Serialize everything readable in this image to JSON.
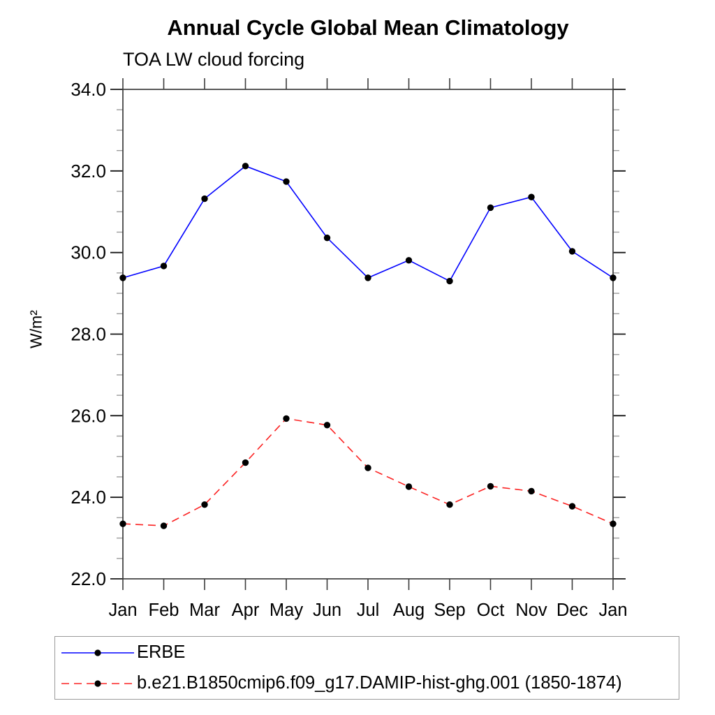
{
  "header": {
    "title": "Annual Cycle Global Mean Climatology",
    "subtitle": "TOA LW cloud forcing"
  },
  "chart_data": {
    "type": "line",
    "title": "Annual Cycle Global Mean Climatology",
    "subtitle": "TOA LW cloud forcing",
    "ylabel": "W/m²",
    "xlabel": "",
    "categories": [
      "Jan",
      "Feb",
      "Mar",
      "Apr",
      "May",
      "Jun",
      "Jul",
      "Aug",
      "Sep",
      "Oct",
      "Nov",
      "Dec",
      "Jan"
    ],
    "ylim": [
      22.0,
      34.0
    ],
    "ytick_major_step": 2.0,
    "ytick_minor_step": 0.5,
    "ytick_labels": [
      "22.0",
      "24.0",
      "26.0",
      "28.0",
      "30.0",
      "32.0",
      "34.0"
    ],
    "grid": "off",
    "legend_position": "bottom-left-box",
    "axis_color": "#3c3c3c",
    "marker_color": "#000000",
    "series": [
      {
        "name": "ERBE",
        "color": "#0000ff",
        "line_style": "solid",
        "marker": "filled-circle",
        "values": [
          29.38,
          29.67,
          31.32,
          32.12,
          31.74,
          30.36,
          29.38,
          29.81,
          29.3,
          31.1,
          31.36,
          30.03,
          29.38
        ]
      },
      {
        "name": "b.e21.B1850cmip6.f09_g17.DAMIP-hist-ghg.001 (1850-1874)",
        "color": "#fb2222",
        "line_style": "dashed",
        "marker": "filled-circle",
        "values": [
          23.35,
          23.3,
          23.82,
          24.85,
          25.93,
          25.77,
          24.72,
          24.26,
          23.82,
          24.27,
          24.15,
          23.78,
          23.35
        ]
      }
    ]
  }
}
